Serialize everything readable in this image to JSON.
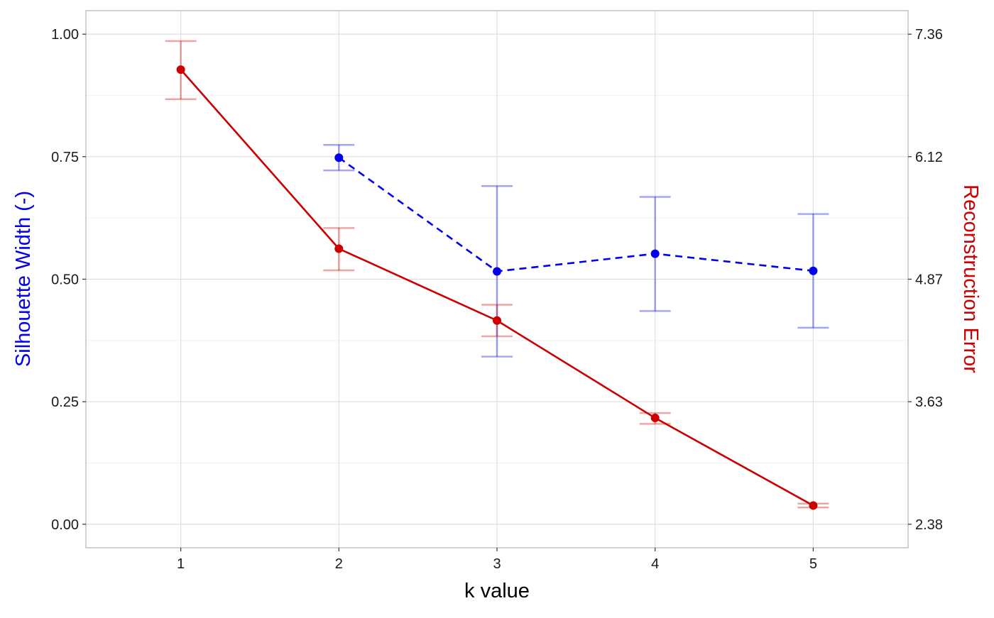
{
  "chart_data": {
    "type": "line",
    "title": "",
    "xlabel": "k value",
    "ylabel": "Silhouette Width (-)",
    "ylabel_right": "Reconstruction Error",
    "x": [
      1,
      2,
      3,
      4,
      5
    ],
    "x_ticks": [
      "1",
      "2",
      "3",
      "4",
      "5"
    ],
    "xlim": [
      0.4,
      5.6
    ],
    "ylim": [
      -0.048,
      1.048
    ],
    "y_ticks": [
      "0.00",
      "0.25",
      "0.50",
      "0.75",
      "1.00"
    ],
    "y_right_range": [
      2.38,
      7.36
    ],
    "y_right_ticks": [
      "2.38",
      "3.63",
      "4.87",
      "6.12",
      "7.36"
    ],
    "grid": true,
    "colors": {
      "silhouette": "#0000ee",
      "reconstruction": "#cc0000"
    },
    "series": [
      {
        "axis": "left",
        "style": "dashed",
        "color": "#0000ee",
        "x": [
          2,
          3,
          4,
          5
        ],
        "values": [
          0.748,
          0.516,
          0.552,
          0.517
        ],
        "err_low": [
          0.722,
          0.342,
          0.435,
          0.401
        ],
        "err_high": [
          0.774,
          0.69,
          0.668,
          0.633
        ]
      },
      {
        "axis": "right",
        "style": "solid",
        "color": "#cc0000",
        "x": [
          1,
          2,
          3,
          4,
          5
        ],
        "values": [
          7.0,
          5.18,
          4.45,
          3.46,
          2.57
        ],
        "err_low": [
          6.7,
          4.96,
          4.29,
          3.4,
          2.55
        ],
        "err_high": [
          7.29,
          5.39,
          4.61,
          3.51,
          2.59
        ]
      }
    ]
  }
}
